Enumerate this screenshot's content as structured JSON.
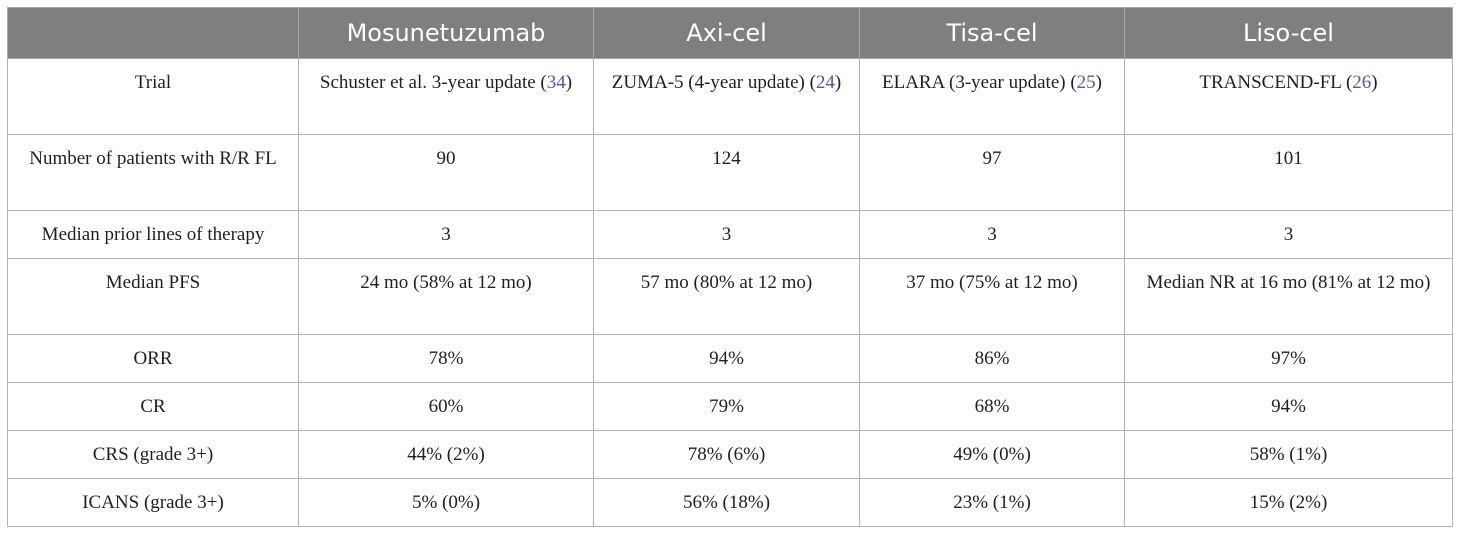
{
  "headers": [
    "",
    "Mosunetuzumab",
    "Axi-cel",
    "Tisa-cel",
    "Liso-cel"
  ],
  "rows": [
    {
      "label": "Trial",
      "cells": [
        {
          "text": "Schuster et al. 3-year update (",
          "ref": "34",
          "after": ")"
        },
        {
          "text": "ZUMA-5 (4-year update) (",
          "ref": "24",
          "after": ")"
        },
        {
          "text": "ELARA (3-year update) (",
          "ref": "25",
          "after": ")"
        },
        {
          "text": "TRANSCEND-FL (",
          "ref": "26",
          "after": ")"
        }
      ]
    },
    {
      "label": "Number of patients with R/R FL",
      "cells": [
        {
          "text": "90"
        },
        {
          "text": "124"
        },
        {
          "text": "97"
        },
        {
          "text": "101"
        }
      ]
    },
    {
      "label": "Median prior lines of therapy",
      "cells": [
        {
          "text": "3"
        },
        {
          "text": "3"
        },
        {
          "text": "3"
        },
        {
          "text": "3"
        }
      ]
    },
    {
      "label": "Median PFS",
      "cells": [
        {
          "text": "24 mo (58% at 12 mo)"
        },
        {
          "text": "57 mo (80% at 12 mo)"
        },
        {
          "text": "37 mo (75% at 12 mo)"
        },
        {
          "text": "Median NR at 16 mo (81% at 12 mo)"
        }
      ]
    },
    {
      "label": "ORR",
      "cells": [
        {
          "text": "78%"
        },
        {
          "text": "94%"
        },
        {
          "text": "86%"
        },
        {
          "text": "97%"
        }
      ]
    },
    {
      "label": "CR",
      "cells": [
        {
          "text": "60%"
        },
        {
          "text": "79%"
        },
        {
          "text": "68%"
        },
        {
          "text": "94%"
        }
      ]
    },
    {
      "label": "CRS (grade 3+)",
      "cells": [
        {
          "text": "44% (2%)"
        },
        {
          "text": "78% (6%)"
        },
        {
          "text": "49% (0%)"
        },
        {
          "text": "58% (1%)"
        }
      ]
    },
    {
      "label": "ICANS (grade 3+)",
      "cells": [
        {
          "text": "5% (0%)"
        },
        {
          "text": "56% (18%)"
        },
        {
          "text": "23% (1%)"
        },
        {
          "text": "15% (2%)"
        }
      ]
    }
  ]
}
